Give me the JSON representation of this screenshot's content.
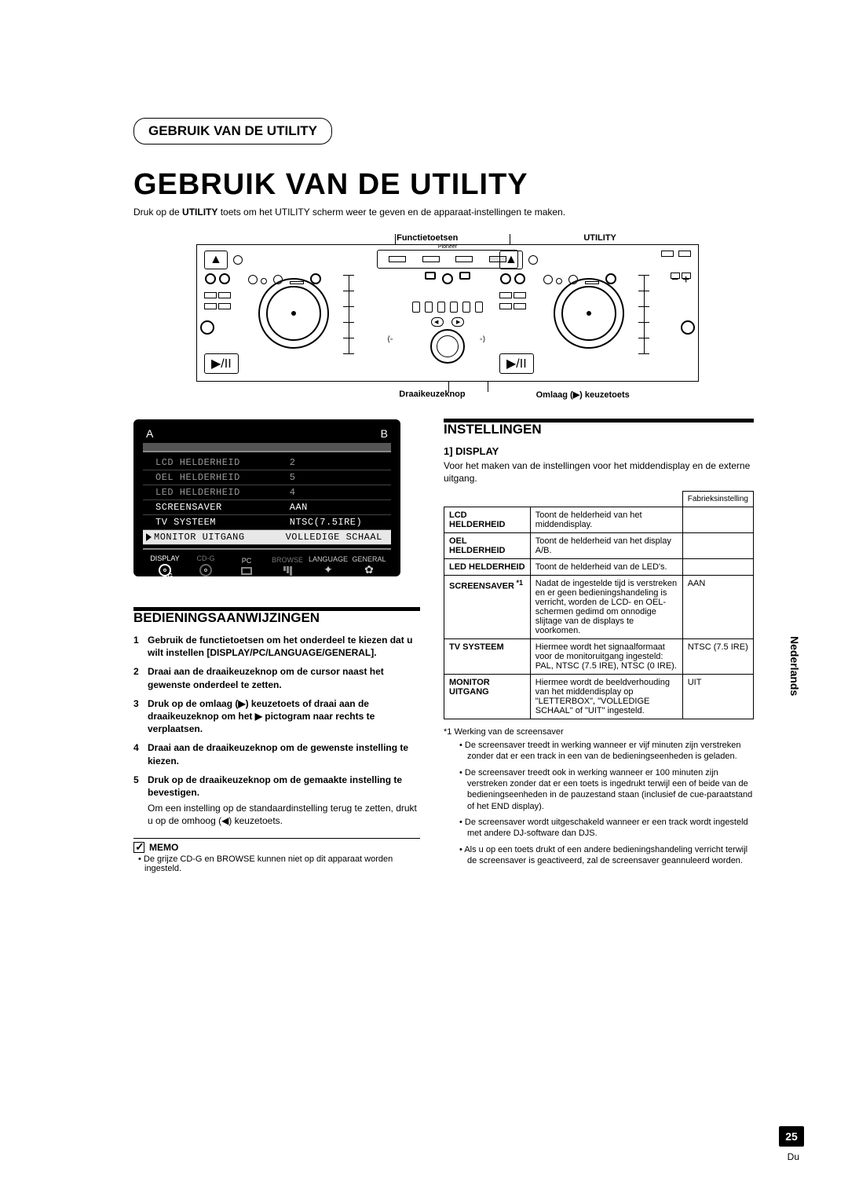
{
  "page": {
    "section_header": "GEBRUIK VAN DE UTILITY",
    "main_title": "GEBRUIK VAN DE UTILITY",
    "intro_pre": "Druk op de ",
    "intro_bold": "UTILITY",
    "intro_post": " toets om het UTILITY scherm weer te geven en de apparaat-instellingen te maken.",
    "side_language": "Nederlands",
    "page_number": "25",
    "page_lang_abbr": "Du"
  },
  "diagram_labels": {
    "top_left": "Functietoetsen",
    "top_right": "UTILITY",
    "bottom_left": "Draaikeuzeknop",
    "bottom_right": "Omlaag (▶) keuzetoets"
  },
  "lcd": {
    "a": "A",
    "b": "B",
    "rows": [
      {
        "l": "LCD HELDERHEID",
        "r": "2",
        "sel": false,
        "dim": true
      },
      {
        "l": "OEL HELDERHEID",
        "r": "5",
        "sel": false,
        "dim": true
      },
      {
        "l": "LED HELDERHEID",
        "r": "4",
        "sel": false,
        "dim": true
      },
      {
        "l": "SCREENSAVER",
        "r": "AAN",
        "sel": false,
        "dim": false
      },
      {
        "l": "TV SYSTEEM",
        "r": "NTSC(7.5IRE)",
        "sel": false,
        "dim": false
      },
      {
        "l": "MONITOR UITGANG",
        "r": "VOLLEDIGE SCHAAL",
        "sel": true,
        "dim": false
      }
    ],
    "bottom": [
      "DISPLAY",
      "CD-G",
      "PC",
      "BROWSE",
      "LANGUAGE",
      "GENERAL"
    ]
  },
  "instructions": {
    "title": "BEDIENINGSAANWIJZINGEN",
    "steps": [
      {
        "n": "1",
        "t": "Gebruik de functietoetsen om het onderdeel te kiezen dat u wilt instellen [DISPLAY/PC/LANGUAGE/GENERAL]."
      },
      {
        "n": "2",
        "t": "Draai aan de draaikeuzeknop om de cursor naast het gewenste onderdeel te zetten."
      },
      {
        "n": "3",
        "t": "Druk op de omlaag (▶) keuzetoets of draai aan de draaikeuzeknop om het ▶ pictogram naar rechts te verplaatsen."
      },
      {
        "n": "4",
        "t": "Draai aan de draaikeuzeknop om de gewenste instelling te kiezen."
      },
      {
        "n": "5",
        "t": "Druk op de draaikeuzeknop om de gemaakte instelling te bevestigen."
      }
    ],
    "step5_sub": "Om een instelling op de standaardinstelling terug te zetten, drukt u op de omhoog (◀) keuzetoets.",
    "memo_label": "MEMO",
    "memo_text": "De grijze CD-G en BROWSE kunnen niet op dit apparaat worden ingesteld."
  },
  "settings": {
    "title": "INSTELLINGEN",
    "sub_title": "1] DISPLAY",
    "sub_intro": "Voor het maken van de instellingen voor het middendisplay en de externe uitgang.",
    "header_default": "Fabrieksinstelling",
    "rows": [
      {
        "name": "LCD HELDERHEID",
        "desc": "Toont de helderheid van het middendisplay.",
        "def": ""
      },
      {
        "name": "OEL HELDERHEID",
        "desc": "Toont de helderheid van het display A/B.",
        "def": ""
      },
      {
        "name": "LED HELDERHEID",
        "desc": "Toont de helderheid van de LED's.",
        "def": ""
      },
      {
        "name": "SCREENSAVER",
        "ref": "*1",
        "desc": "Nadat de ingestelde tijd is verstreken en er geen bedieningshandeling is verricht, worden de LCD- en OEL-schermen gedimd om onnodige slijtage van de displays te voorkomen.",
        "def": "AAN"
      },
      {
        "name": "TV SYSTEEM",
        "desc": "Hiermee wordt het signaalformaat voor de monitoruitgang ingesteld: PAL, NTSC (7.5 IRE), NTSC (0 IRE).",
        "def": "NTSC (7.5 IRE)"
      },
      {
        "name": "MONITOR UITGANG",
        "desc": "Hiermee wordt de beeldverhouding van het middendisplay op \"LETTERBOX\", \"VOLLEDIGE SCHAAL\" of \"UIT\" ingesteld.",
        "def": "UIT"
      }
    ],
    "footnote_hdr": "*1  Werking van de screensaver",
    "footnotes": [
      "De screensaver treedt in werking wanneer er vijf minuten zijn verstreken zonder dat er een track in een van de bedieningseenheden is geladen.",
      "De screensaver treedt ook in werking wanneer er 100 minuten zijn verstreken zonder dat er een toets is ingedrukt terwijl een of beide van de bedieningseenheden in de pauzestand staan (inclusief de cue-paraatstand of het END display).",
      "De screensaver wordt uitgeschakeld wanneer er een track wordt ingesteld met andere DJ-software dan DJS.",
      "Als u op een toets drukt of een andere bedieningshandeling verricht terwijl de screensaver is geactiveerd, zal de screensaver geannuleerd worden."
    ]
  },
  "style": {
    "bg": "#ffffff",
    "text": "#000000",
    "lcd_bg": "#000000",
    "lcd_text": "#ffffff",
    "lcd_dim": "#888888",
    "lcd_border": "#444444"
  }
}
